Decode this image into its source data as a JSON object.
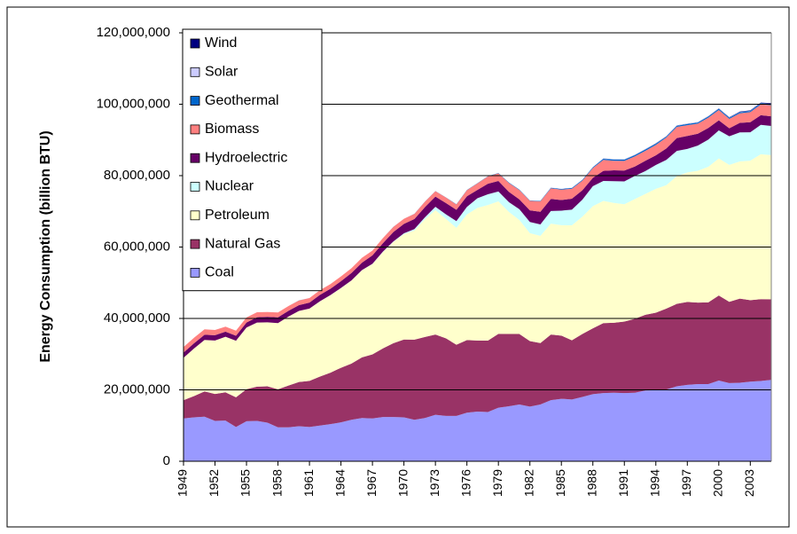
{
  "chart_data": {
    "type": "stacked_area",
    "y_label": "Energy Consumption (billion BTU)",
    "x": [
      1949,
      1950,
      1951,
      1952,
      1953,
      1954,
      1955,
      1956,
      1957,
      1958,
      1959,
      1960,
      1961,
      1962,
      1963,
      1964,
      1965,
      1966,
      1967,
      1968,
      1969,
      1970,
      1971,
      1972,
      1973,
      1974,
      1975,
      1976,
      1977,
      1978,
      1979,
      1980,
      1981,
      1982,
      1983,
      1984,
      1985,
      1986,
      1987,
      1988,
      1989,
      1990,
      1991,
      1992,
      1993,
      1994,
      1995,
      1996,
      1997,
      1998,
      1999,
      2000,
      2001,
      2002,
      2003,
      2004,
      2005
    ],
    "xlim": [
      1949,
      2005
    ],
    "xticks": [
      1949,
      1952,
      1955,
      1958,
      1961,
      1964,
      1967,
      1970,
      1973,
      1976,
      1979,
      1982,
      1985,
      1988,
      1991,
      1994,
      1997,
      2000,
      2003
    ],
    "ylim": [
      0,
      120000000
    ],
    "yticks": [
      0,
      {
        "value": 20000000,
        "label": "20,000,000"
      },
      {
        "value": 40000000,
        "label": "40,000,000"
      },
      {
        "value": 60000000,
        "label": "60,000,000"
      },
      {
        "value": 80000000,
        "label": "80,000,000"
      },
      {
        "value": 100000000,
        "label": "100,000,000"
      },
      {
        "value": 120000000,
        "label": "120,000,000"
      }
    ],
    "grid": true,
    "legend": "upper left",
    "series": [
      {
        "name": "Coal",
        "color": "#9999ff",
        "values": [
          12000000,
          12300000,
          12500000,
          11300000,
          11400000,
          9600000,
          11200000,
          11300000,
          10800000,
          9500000,
          9500000,
          9800000,
          9600000,
          10000000,
          10400000,
          10900000,
          11600000,
          12100000,
          12000000,
          12400000,
          12400000,
          12300000,
          11600000,
          12100000,
          13000000,
          12700000,
          12700000,
          13600000,
          13900000,
          13800000,
          15000000,
          15400000,
          15900000,
          15300000,
          15900000,
          17100000,
          17500000,
          17300000,
          18000000,
          18800000,
          19100000,
          19200000,
          19100000,
          19200000,
          19800000,
          19900000,
          20100000,
          21000000,
          21400000,
          21600000,
          21600000,
          22600000,
          21900000,
          22000000,
          22300000,
          22500000,
          22800000
        ]
      },
      {
        "name": "Natural Gas",
        "color": "#993366",
        "values": [
          5100000,
          5970000,
          7050000,
          7550000,
          7910000,
          8330000,
          9000000,
          9610000,
          10190000,
          10660000,
          11720000,
          12390000,
          12930000,
          13730000,
          14400000,
          15290000,
          15770000,
          16990000,
          17940000,
          19210000,
          20680000,
          21790000,
          22470000,
          22700000,
          22510000,
          21730000,
          19950000,
          20350000,
          19930000,
          20000000,
          20670000,
          20240000,
          19750000,
          18360000,
          17200000,
          18390000,
          17700000,
          16590000,
          17640000,
          18450000,
          19600000,
          19600000,
          20030000,
          20710000,
          21230000,
          21730000,
          22670000,
          23090000,
          23220000,
          22830000,
          22910000,
          23820000,
          22770000,
          23560000,
          22830000,
          22910000,
          22560000
        ]
      },
      {
        "name": "Petroleum",
        "color": "#ffffcc",
        "values": [
          11880000,
          13320000,
          14430000,
          14960000,
          15560000,
          15840000,
          17250000,
          17940000,
          17930000,
          18530000,
          19320000,
          19920000,
          20220000,
          21050000,
          21700000,
          22300000,
          23250000,
          24400000,
          25280000,
          26980000,
          28340000,
          29520000,
          30560000,
          32950000,
          34840000,
          33450000,
          32730000,
          35180000,
          37120000,
          37970000,
          37120000,
          34200000,
          31930000,
          30230000,
          30050000,
          31050000,
          30920000,
          32200000,
          32870000,
          34220000,
          34210000,
          33550000,
          32850000,
          33530000,
          33840000,
          34670000,
          34550000,
          35760000,
          36270000,
          36930000,
          37960000,
          38400000,
          38330000,
          38400000,
          39050000,
          40590000,
          40390000
        ]
      },
      {
        "name": "Nuclear",
        "color": "#ccffff",
        "values": [
          0,
          0,
          0,
          0,
          0,
          0,
          0,
          0,
          1000,
          2000,
          2000,
          6000,
          20000,
          26000,
          38000,
          40000,
          43000,
          64000,
          88000,
          142000,
          154000,
          239000,
          413000,
          584000,
          910000,
          1270000,
          1900000,
          2110000,
          2700000,
          3020000,
          2780000,
          2740000,
          3010000,
          3130000,
          3200000,
          3550000,
          4080000,
          4380000,
          4750000,
          5590000,
          5600000,
          6100000,
          6420000,
          6480000,
          6410000,
          6690000,
          7080000,
          7090000,
          6600000,
          7070000,
          7610000,
          7860000,
          8030000,
          8140000,
          7960000,
          8220000,
          8160000
        ]
      },
      {
        "name": "Hydroelectric",
        "color": "#660066",
        "values": [
          1450000,
          1440000,
          1450000,
          1500000,
          1440000,
          1390000,
          1410000,
          1490000,
          1560000,
          1630000,
          1590000,
          1610000,
          1660000,
          1820000,
          1770000,
          1890000,
          2060000,
          2060000,
          2350000,
          2350000,
          2650000,
          2630000,
          2820000,
          2860000,
          2860000,
          3180000,
          3150000,
          2980000,
          2330000,
          2940000,
          2930000,
          2900000,
          2760000,
          3270000,
          3530000,
          3390000,
          2970000,
          3070000,
          2630000,
          2330000,
          2840000,
          3050000,
          3020000,
          2620000,
          2890000,
          2680000,
          3210000,
          3590000,
          3640000,
          3300000,
          3270000,
          2810000,
          2240000,
          2690000,
          2830000,
          2690000,
          2700000
        ]
      },
      {
        "name": "Biomass",
        "color": "#ff8080",
        "values": [
          1550000,
          1560000,
          1540000,
          1470000,
          1400000,
          1420000,
          1420000,
          1390000,
          1320000,
          1350000,
          1350000,
          1320000,
          1290000,
          1300000,
          1320000,
          1340000,
          1330000,
          1370000,
          1340000,
          1420000,
          1440000,
          1430000,
          1430000,
          1500000,
          1530000,
          1540000,
          1500000,
          1710000,
          1840000,
          2040000,
          2150000,
          2480000,
          2600000,
          2660000,
          2900000,
          2970000,
          2920000,
          2790000,
          2700000,
          2740000,
          3060000,
          2660000,
          2700000,
          2850000,
          2800000,
          2940000,
          3070000,
          3130000,
          3010000,
          2830000,
          2890000,
          2910000,
          2640000,
          2650000,
          2810000,
          3020000,
          3120000
        ]
      },
      {
        "name": "Geothermal",
        "color": "#0066cc",
        "values": [
          0,
          0,
          0,
          0,
          0,
          0,
          0,
          0,
          0,
          0,
          0,
          1000,
          2000,
          2000,
          3000,
          3000,
          4000,
          4000,
          7000,
          9000,
          13000,
          11000,
          12000,
          31000,
          43000,
          53000,
          70000,
          78000,
          77000,
          64000,
          84000,
          110000,
          123000,
          105000,
          129000,
          165000,
          198000,
          219000,
          229000,
          217000,
          317000,
          336000,
          346000,
          349000,
          364000,
          338000,
          294000,
          316000,
          325000,
          328000,
          331000,
          317000,
          311000,
          328000,
          331000,
          341000,
          343000
        ]
      },
      {
        "name": "Solar",
        "color": "#ccccff",
        "values": [
          0,
          0,
          0,
          0,
          0,
          0,
          0,
          0,
          0,
          0,
          0,
          0,
          0,
          0,
          0,
          0,
          0,
          0,
          0,
          0,
          0,
          0,
          0,
          0,
          0,
          0,
          0,
          0,
          0,
          0,
          0,
          0,
          0,
          0,
          0,
          55000,
          59000,
          61000,
          62000,
          61000,
          59000,
          59000,
          62000,
          64000,
          66000,
          69000,
          70000,
          71000,
          70000,
          69000,
          68000,
          66000,
          65000,
          64000,
          64000,
          65000,
          66000
        ]
      },
      {
        "name": "Wind",
        "color": "#000080",
        "values": [
          0,
          0,
          0,
          0,
          0,
          0,
          0,
          0,
          0,
          0,
          0,
          0,
          0,
          0,
          0,
          0,
          0,
          0,
          0,
          0,
          0,
          0,
          0,
          0,
          0,
          0,
          0,
          0,
          0,
          0,
          0,
          0,
          0,
          0,
          0,
          0,
          0,
          0,
          0,
          0,
          22000,
          29000,
          31000,
          30000,
          31000,
          36000,
          33000,
          33000,
          34000,
          31000,
          46000,
          57000,
          70000,
          105000,
          115000,
          142000,
          178000
        ]
      }
    ]
  }
}
